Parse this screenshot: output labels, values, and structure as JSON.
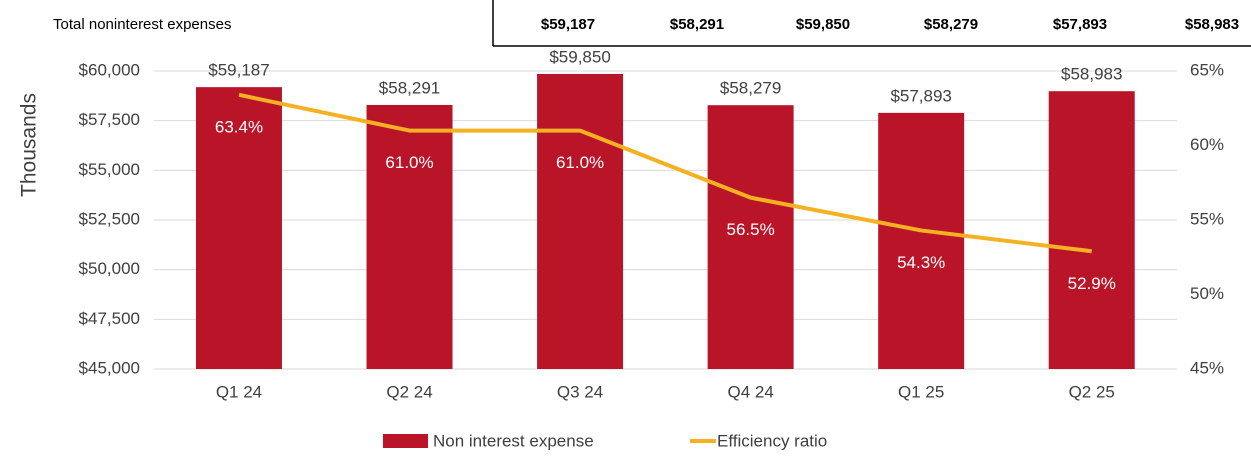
{
  "table": {
    "rows": [
      [
        "Total noninterest expenses",
        "$59,187",
        "$58,291",
        "$59,850",
        "$58,279",
        "$57,893",
        "$58,983"
      ]
    ]
  },
  "chart_data": {
    "type": "bar-line",
    "ylabel": "Thousands",
    "categories": [
      "Q1 24",
      "Q2 24",
      "Q3 24",
      "Q4 24",
      "Q1 25",
      "Q2 25"
    ],
    "series": [
      {
        "name": "Non interest expense",
        "type": "bar",
        "color": "#ba1429",
        "values": [
          59187,
          58291,
          59850,
          58279,
          57893,
          58983
        ],
        "value_labels": [
          "$59,187",
          "$58,291",
          "$59,850",
          "$58,279",
          "$57,893",
          "$58,983"
        ]
      },
      {
        "name": "Efficiency ratio",
        "type": "line",
        "axis": "y2",
        "color": "#f4b223",
        "values": [
          63.4,
          61.0,
          61.0,
          56.5,
          54.3,
          52.9
        ],
        "value_labels": [
          "63.4%",
          "61.0%",
          "61.0%",
          "56.5%",
          "54.3%",
          "52.9%"
        ]
      }
    ],
    "ylim": [
      45000,
      60000
    ],
    "yticks": [
      {
        "value": 45000,
        "label": "$45,000"
      },
      {
        "value": 47500,
        "label": "$47,500"
      },
      {
        "value": 50000,
        "label": "$50,000"
      },
      {
        "value": 52500,
        "label": "$52,500"
      },
      {
        "value": 55000,
        "label": "$55,000"
      },
      {
        "value": 57500,
        "label": "$57,500"
      },
      {
        "value": 60000,
        "label": "$60,000"
      }
    ],
    "y2lim": [
      45,
      65
    ],
    "y2ticks": [
      {
        "value": 45,
        "label": "45%"
      },
      {
        "value": 50,
        "label": "50%"
      },
      {
        "value": 55,
        "label": "55%"
      },
      {
        "value": 60,
        "label": "60%"
      },
      {
        "value": 65,
        "label": "65%"
      }
    ],
    "grid": true,
    "legend": "bottom"
  }
}
